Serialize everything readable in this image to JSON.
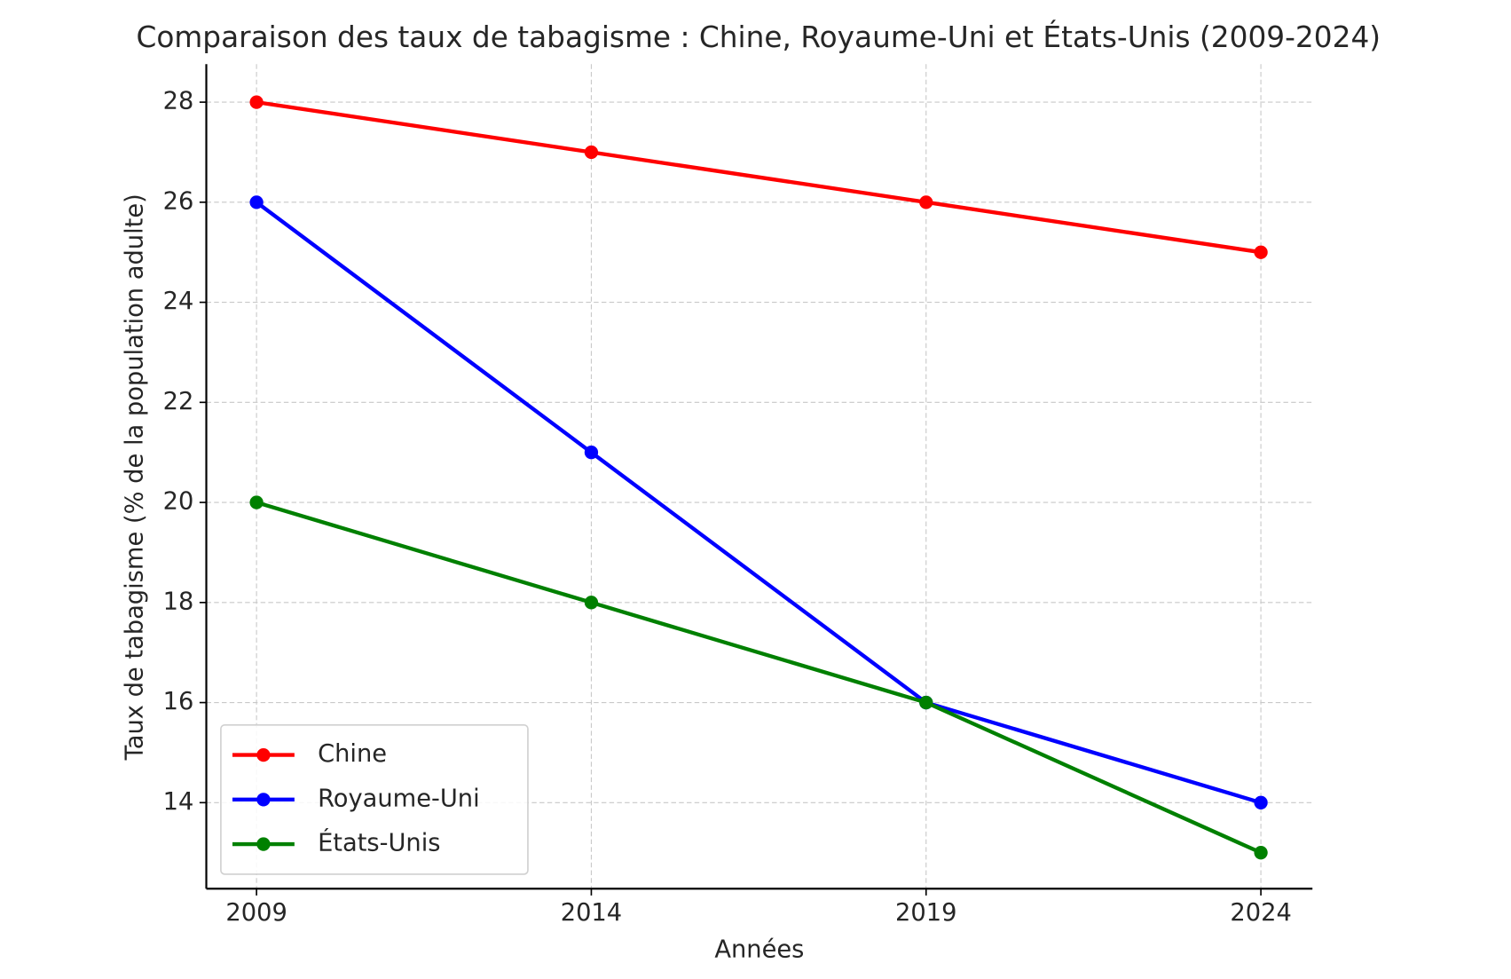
{
  "chart_data": {
    "type": "line",
    "title": "Comparaison des taux de tabagisme : Chine, Royaume-Uni et États-Unis (2009-2024)",
    "x_label": "Années",
    "y_label": "Taux de tabagisme (% de la population adulte)",
    "x": [
      2009,
      2014,
      2019,
      2024
    ],
    "series": [
      {
        "name": "Chine",
        "color": "#ff0000",
        "values": [
          28,
          27,
          26,
          25
        ]
      },
      {
        "name": "Royaume-Uni",
        "color": "#0000ff",
        "values": [
          26,
          21,
          16,
          14
        ]
      },
      {
        "name": "États-Unis",
        "color": "#008000",
        "values": [
          20,
          18,
          16,
          13
        ]
      }
    ],
    "xlim": [
      2008.25,
      2024.77
    ],
    "xticks": [
      2009,
      2014,
      2019,
      2024
    ],
    "ylim": [
      12.28,
      28.76
    ],
    "yticks": [
      14,
      16,
      18,
      20,
      22,
      24,
      26,
      28
    ],
    "grid": true,
    "legend": "lower left"
  }
}
